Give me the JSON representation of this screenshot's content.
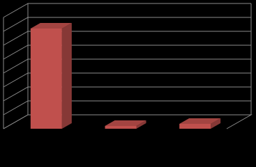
{
  "chart_data": {
    "type": "bar3d",
    "categories": [
      null,
      null,
      null
    ],
    "values": [
      7.2,
      0.2,
      0.35
    ],
    "color": "#c0504d",
    "ylim": [
      0,
      8
    ],
    "yticks": [
      0,
      1,
      2,
      3,
      4,
      5,
      6,
      7,
      8
    ],
    "grid": true
  }
}
